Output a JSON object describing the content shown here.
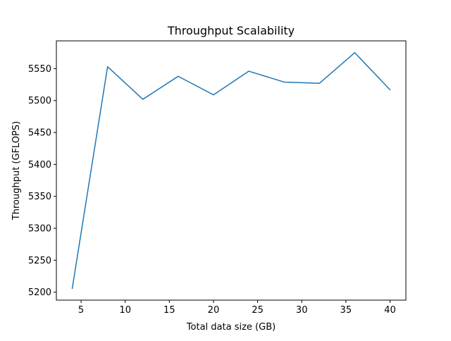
{
  "chart_data": {
    "type": "line",
    "title": "Throughput Scalability",
    "xlabel": "Total data size (GB)",
    "ylabel": "Throughput (GFLOPS)",
    "x": [
      4,
      8,
      12,
      16,
      20,
      24,
      28,
      32,
      36,
      40
    ],
    "series": [
      {
        "values": [
          5206,
          5553,
          5502,
          5538,
          5509,
          5546,
          5529,
          5527,
          5575,
          5517
        ],
        "color": "#1f77b4"
      }
    ],
    "xlim": [
      2.2,
      41.8
    ],
    "ylim": [
      5187.5,
      5593.5
    ],
    "xticks": [
      5,
      10,
      15,
      20,
      25,
      30,
      35,
      40
    ],
    "xtick_labels": [
      "5",
      "10",
      "15",
      "20",
      "25",
      "30",
      "35",
      "40"
    ],
    "yticks": [
      5200,
      5250,
      5300,
      5350,
      5400,
      5450,
      5500,
      5550
    ],
    "ytick_labels": [
      "5200",
      "5250",
      "5300",
      "5350",
      "5400",
      "5450",
      "5500",
      "5550"
    ],
    "grid": false,
    "legend": "none"
  }
}
